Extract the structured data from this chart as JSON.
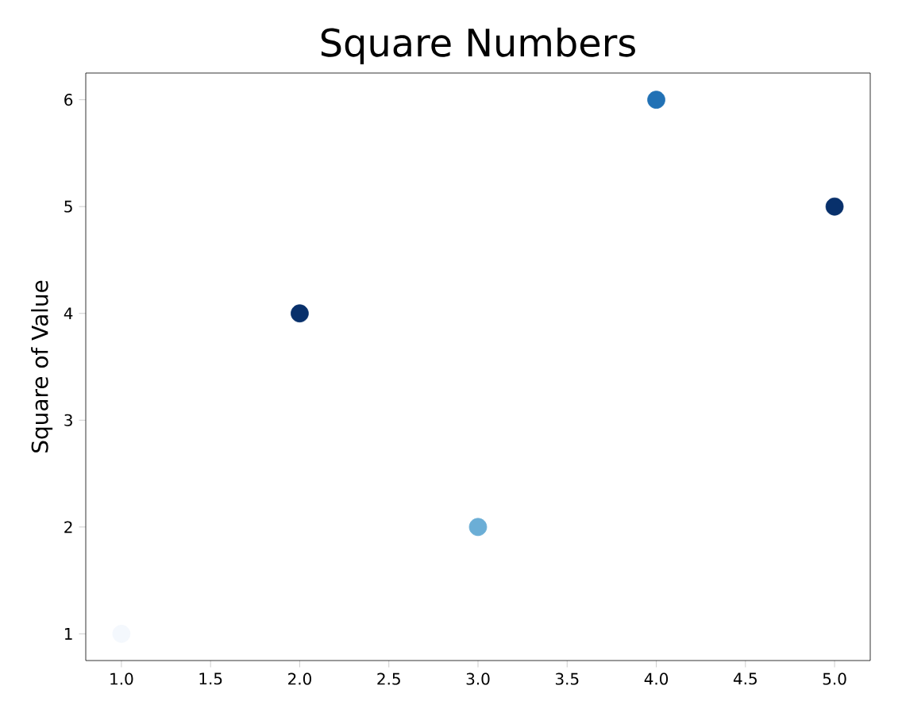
{
  "chart_data": {
    "type": "scatter",
    "title": "Square Numbers",
    "ylabel": "Square of Value",
    "x": [
      1,
      2,
      3,
      4,
      5
    ],
    "values": [
      1,
      4,
      2,
      6,
      5
    ],
    "colors": [
      "#f4f8fd",
      "#08306b",
      "#6baed6",
      "#2171b5",
      "#08306b"
    ],
    "xlim": [
      0.8,
      5.2
    ],
    "ylim": [
      0.75,
      6.25
    ],
    "xticks": [
      {
        "value": 1.0,
        "label": "1.0"
      },
      {
        "value": 1.5,
        "label": "1.5"
      },
      {
        "value": 2.0,
        "label": "2.0"
      },
      {
        "value": 2.5,
        "label": "2.5"
      },
      {
        "value": 3.0,
        "label": "3.0"
      },
      {
        "value": 3.5,
        "label": "3.5"
      },
      {
        "value": 4.0,
        "label": "4.0"
      },
      {
        "value": 4.5,
        "label": "4.5"
      },
      {
        "value": 5.0,
        "label": "5.0"
      }
    ],
    "yticks": [
      1,
      2,
      3,
      4,
      5,
      6
    ]
  }
}
